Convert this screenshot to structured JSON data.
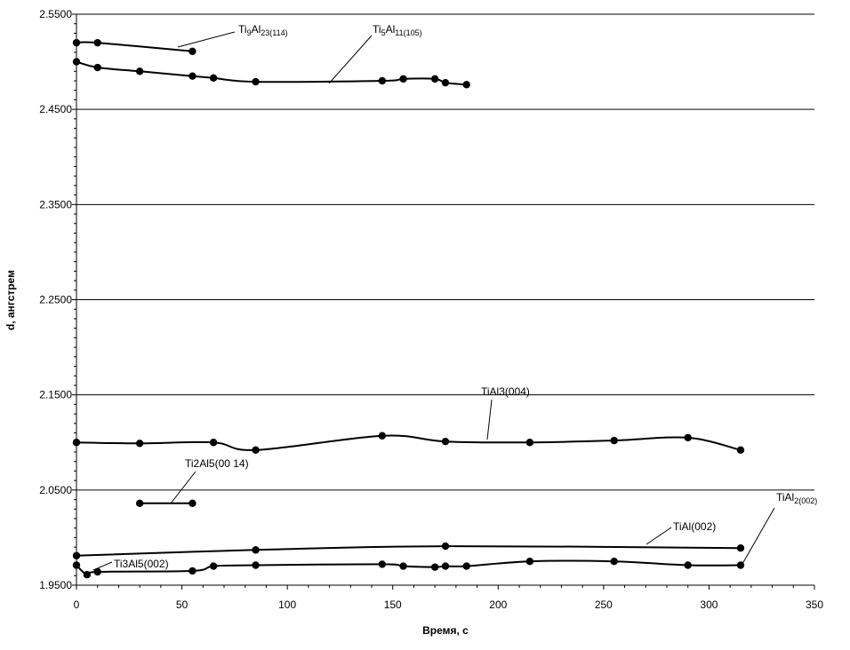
{
  "chart_data": {
    "type": "scatter",
    "xlabel": "Время, с",
    "ylabel": "d, ангстрем",
    "xlim": [
      0,
      350
    ],
    "ylim": [
      1.95,
      2.55
    ],
    "xticks": [
      "0",
      "50",
      "100",
      "150",
      "200",
      "250",
      "300",
      "350"
    ],
    "yticks": [
      "1.9500",
      "2.0500",
      "2.1500",
      "2.2500",
      "2.3500",
      "2.4500",
      "2.5500"
    ],
    "grid": "horizontal-major",
    "series": [
      {
        "name": "Ti9Al23(114)",
        "x": [
          0,
          10,
          55
        ],
        "y": [
          2.52,
          2.52,
          2.511
        ]
      },
      {
        "name": "Ti5Al11(105)",
        "x": [
          0,
          10,
          30,
          55,
          65,
          85,
          145,
          155,
          170,
          175,
          185
        ],
        "y": [
          2.5,
          2.494,
          2.49,
          2.485,
          2.483,
          2.479,
          2.48,
          2.482,
          2.482,
          2.478,
          2.476
        ]
      },
      {
        "name": "TiAl3(004)",
        "x": [
          0,
          30,
          65,
          85,
          145,
          175,
          215,
          255,
          290,
          315
        ],
        "y": [
          2.1,
          2.099,
          2.1,
          2.092,
          2.107,
          2.101,
          2.1,
          2.102,
          2.105,
          2.092
        ]
      },
      {
        "name": "Ti2Al5(00 14)",
        "x": [
          30,
          55
        ],
        "y": [
          2.036,
          2.036
        ]
      },
      {
        "name": "TiAl(002)",
        "x": [
          0,
          85,
          175,
          315
        ],
        "y": [
          1.981,
          1.987,
          1.991,
          1.989
        ]
      },
      {
        "name": "Ti3Al5(002)",
        "x": [
          0,
          5,
          10,
          55,
          65,
          85,
          145,
          155,
          170,
          175,
          185,
          215,
          255,
          290,
          315
        ],
        "y": [
          1.971,
          1.961,
          1.964,
          1.965,
          1.97,
          1.971,
          1.972,
          1.97,
          1.969,
          1.97,
          1.97,
          1.975,
          1.975,
          1.971,
          1.971
        ]
      }
    ],
    "annotations": [
      {
        "series": "Ti9Al23(114)",
        "parts": [
          [
            "Ti",
            ""
          ],
          [
            "9",
            "sub"
          ],
          [
            "Al",
            ""
          ],
          [
            "23(114)",
            "sub"
          ]
        ]
      },
      {
        "series": "Ti5Al11(105)",
        "parts": [
          [
            "Ti",
            ""
          ],
          [
            "5",
            "sub"
          ],
          [
            "Al",
            ""
          ],
          [
            "11(105)",
            "sub"
          ]
        ]
      },
      {
        "series": "TiAl3(004)",
        "parts": [
          [
            "TiAl3(004)",
            ""
          ]
        ]
      },
      {
        "series": "Ti2Al5(00 14)",
        "parts": [
          [
            "Ti2Al5(00 14)",
            ""
          ]
        ]
      },
      {
        "series": "TiAl(002)",
        "parts": [
          [
            "TiAl(002)",
            ""
          ]
        ]
      },
      {
        "series": "Ti3Al5(002)",
        "parts": [
          [
            "Ti3Al5(002)",
            ""
          ]
        ]
      },
      {
        "series": "TiAl2(002)",
        "parts": [
          [
            "TiAl",
            ""
          ],
          [
            "2(002)",
            "sub"
          ]
        ]
      }
    ]
  }
}
